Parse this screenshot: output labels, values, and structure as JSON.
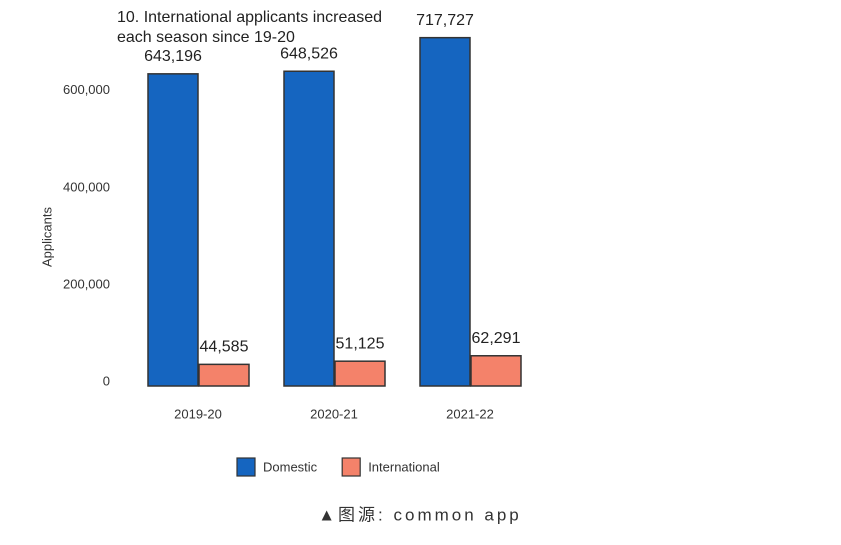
{
  "chart_data": {
    "type": "bar",
    "title": [
      "10. International applicants increased",
      "each season since 19-20"
    ],
    "y_label": "Applicants",
    "categories": [
      "2019-20",
      "2020-21",
      "2021-22"
    ],
    "series": [
      {
        "name": "Domestic",
        "color": "#1565c0",
        "values": [
          643196,
          648526,
          717727
        ],
        "value_labels": [
          "643,196",
          "648,526",
          "717,727"
        ]
      },
      {
        "name": "International",
        "color": "#f4826a",
        "values": [
          44585,
          51125,
          62291
        ],
        "value_labels": [
          "44,585",
          "51,125",
          "62,291"
        ]
      }
    ],
    "ylim": [
      0,
      750000
    ],
    "yticks": [
      0,
      {
        "value": 200000,
        "label": "200,000"
      },
      {
        "value": 400000,
        "label": "400,000"
      },
      {
        "value": 600000,
        "label": "600,000"
      }
    ],
    "grid": false,
    "legend": "bottom",
    "source": "▲图源: common app"
  }
}
